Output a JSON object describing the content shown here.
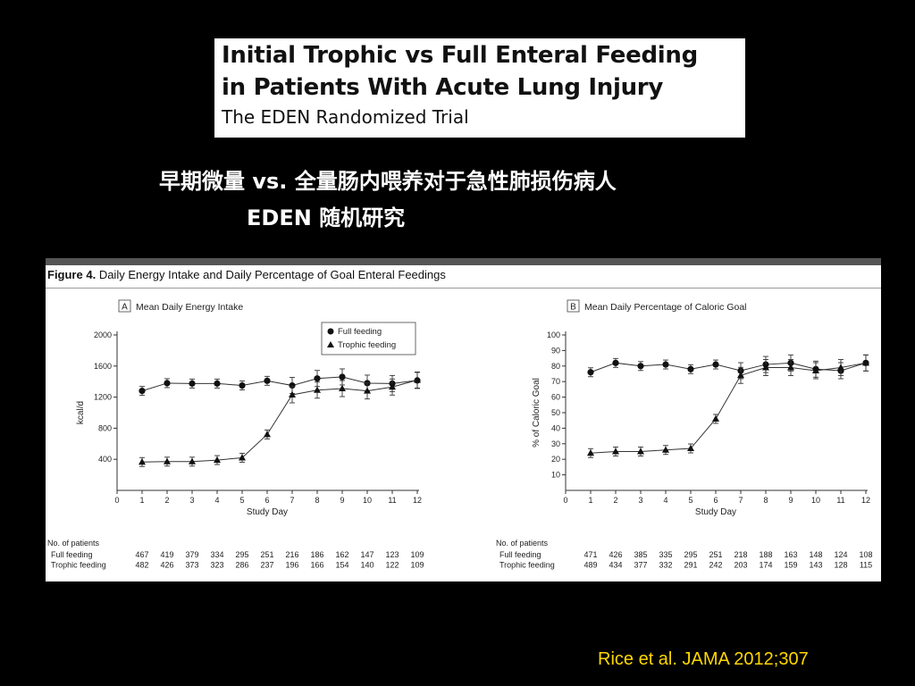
{
  "slide": {
    "title_line1": "Initial Trophic vs Full Enteral Feeding",
    "title_line2": "in Patients With Acute Lung Injury",
    "title_line3": "The EDEN Randomized Trial",
    "cn_line1": "早期微量 vs. 全量肠内喂养对于急性肺损伤病人",
    "cn_line2": "EDEN 随机研究",
    "citation": "Rice et al. JAMA 2012;307"
  },
  "figure": {
    "label": "Figure 4.",
    "title": "Daily Energy Intake and Daily Percentage of Goal Enteral Feedings"
  },
  "colors": {
    "background": "#000000",
    "title_text": "#ffffff",
    "citation": "#ffd700"
  },
  "chart_data": [
    {
      "type": "line",
      "panel_letter": "A",
      "title": "Mean Daily Energy Intake",
      "xlabel": "Study Day",
      "ylabel": "kcal/d",
      "x": [
        1,
        2,
        3,
        4,
        5,
        6,
        7,
        8,
        9,
        10,
        11,
        12
      ],
      "xlim": [
        0,
        12
      ],
      "ylim": [
        0,
        2000
      ],
      "yticks": [
        400,
        800,
        1200,
        1600,
        2000
      ],
      "xticks": [
        0,
        1,
        2,
        3,
        4,
        5,
        6,
        7,
        8,
        9,
        10,
        11,
        12
      ],
      "legend_position": "top-right",
      "series": [
        {
          "name": "Full feeding",
          "marker": "circle",
          "values": [
            1280,
            1380,
            1375,
            1375,
            1350,
            1410,
            1350,
            1440,
            1460,
            1380,
            1375,
            1415
          ]
        },
        {
          "name": "Trophic feeding",
          "marker": "triangle",
          "values": [
            365,
            370,
            370,
            390,
            420,
            720,
            1230,
            1290,
            1310,
            1280,
            1330,
            1420
          ]
        }
      ],
      "patients_header": "No. of patients",
      "patients": [
        {
          "label": "Full feeding",
          "counts": [
            "467",
            "419",
            "379",
            "334",
            "295",
            "251",
            "216",
            "186",
            "162",
            "147",
            "123",
            "109"
          ]
        },
        {
          "label": "Trophic feeding",
          "counts": [
            "482",
            "426",
            "373",
            "323",
            "286",
            "237",
            "196",
            "166",
            "154",
            "140",
            "122",
            "109"
          ]
        }
      ]
    },
    {
      "type": "line",
      "panel_letter": "B",
      "title": "Mean Daily Percentage of Caloric Goal",
      "xlabel": "Study Day",
      "ylabel": "% of Caloric Goal",
      "x": [
        1,
        2,
        3,
        4,
        5,
        6,
        7,
        8,
        9,
        10,
        11,
        12
      ],
      "xlim": [
        0,
        12
      ],
      "ylim": [
        0,
        100
      ],
      "yticks": [
        10,
        20,
        30,
        40,
        50,
        60,
        70,
        80,
        90,
        100
      ],
      "xticks": [
        0,
        1,
        2,
        3,
        4,
        5,
        6,
        7,
        8,
        9,
        10,
        11,
        12
      ],
      "series": [
        {
          "name": "Full feeding",
          "marker": "circle",
          "values": [
            76,
            82,
            80,
            81,
            78,
            81,
            77,
            81,
            82,
            78,
            77,
            82
          ]
        },
        {
          "name": "Trophic feeding",
          "marker": "triangle",
          "values": [
            24,
            25,
            25,
            26,
            27,
            46,
            74,
            79,
            79,
            77,
            79,
            82
          ]
        }
      ],
      "patients_header": "No. of patients",
      "patients": [
        {
          "label": "Full feeding",
          "counts": [
            "471",
            "426",
            "385",
            "335",
            "295",
            "251",
            "218",
            "188",
            "163",
            "148",
            "124",
            "108"
          ]
        },
        {
          "label": "Trophic feeding",
          "counts": [
            "489",
            "434",
            "377",
            "332",
            "291",
            "242",
            "203",
            "174",
            "159",
            "143",
            "128",
            "115"
          ]
        }
      ]
    }
  ]
}
